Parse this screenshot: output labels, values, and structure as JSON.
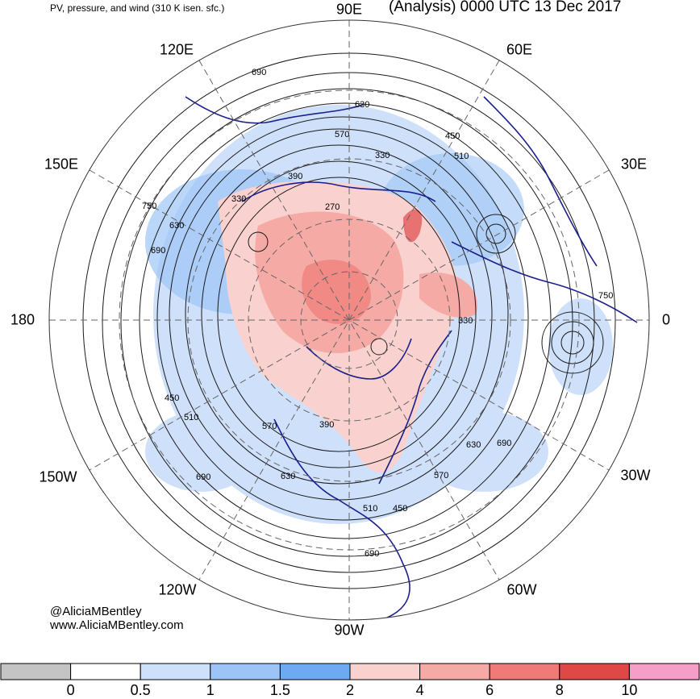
{
  "header": {
    "title_left": "PV, pressure, and wind (310 K isen. sfc.)",
    "title_right": "(Analysis) 0000 UTC 13 Dec 2017"
  },
  "longitude_labels": {
    "90E": "90E",
    "120E": "120E",
    "60E": "60E",
    "150E": "150E",
    "30E": "30E",
    "180": "180",
    "0": "0",
    "150W": "150W",
    "30W": "30W",
    "120W": "120W",
    "60W": "60W",
    "90W": "90W"
  },
  "contour_labels": [
    "690",
    "630",
    "570",
    "510",
    "450",
    "390",
    "330",
    "270",
    "750",
    "690",
    "630",
    "330",
    "390",
    "450",
    "510",
    "570",
    "690",
    "630",
    "570",
    "510",
    "450",
    "690",
    "330",
    "750",
    "630",
    "690"
  ],
  "credit": {
    "handle": "@AliciaMBentley",
    "website": "www.AliciaMBentley.com"
  },
  "colorbar": {
    "ticks": [
      "0",
      "0.5",
      "1",
      "1.5",
      "2",
      "4",
      "6",
      "8",
      "10"
    ],
    "colors": [
      "#c4c4c4",
      "#ffffff",
      "#cfe0fa",
      "#9cc4f6",
      "#6eaaf2",
      "#f9d2cf",
      "#f6aaa6",
      "#f07a78",
      "#e04848",
      "#f49ec8"
    ]
  },
  "colors": {
    "coast": "#1a1f8c",
    "contour": "#1a1a1a",
    "grid": "#666666"
  }
}
